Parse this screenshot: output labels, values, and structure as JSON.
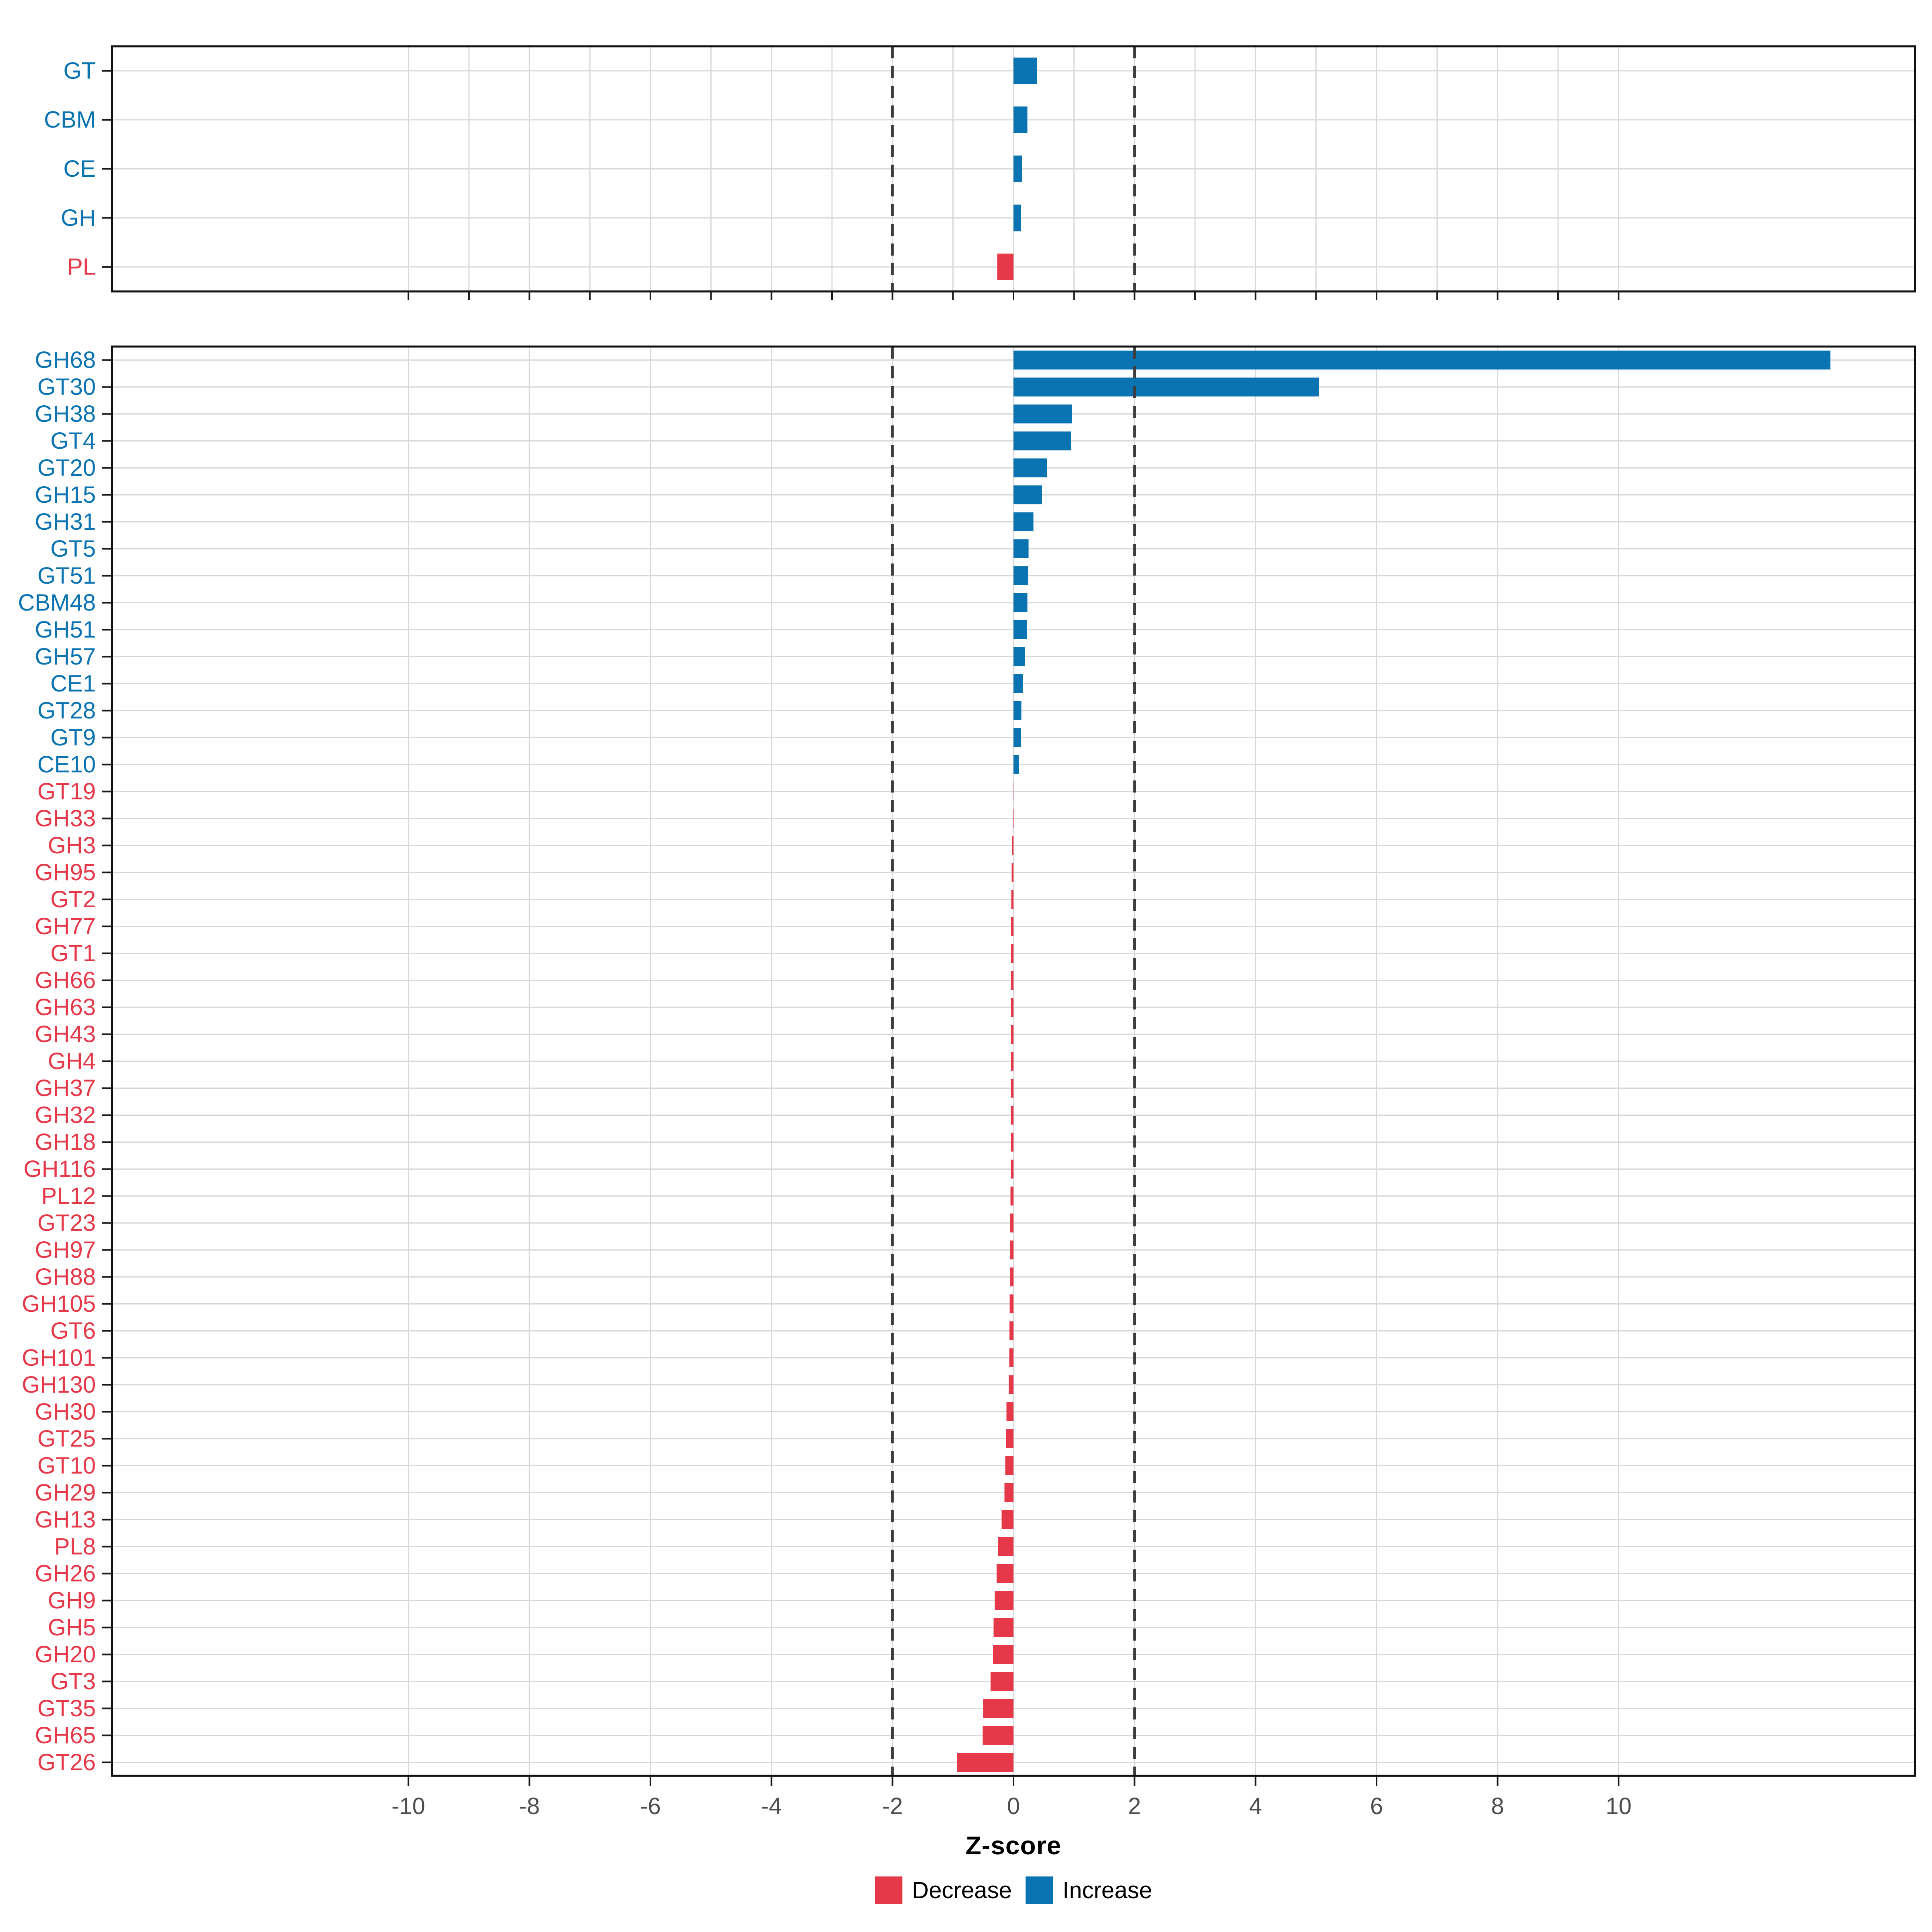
{
  "axis": {
    "label": "Z-score",
    "tick_labels": [
      "-10",
      "-8",
      "-6",
      "-4",
      "-2",
      "0",
      "2",
      "4",
      "6",
      "8",
      "10"
    ],
    "tick_values": [
      -10,
      -8,
      -6,
      -4,
      -2,
      0,
      2,
      4,
      6,
      8,
      10
    ],
    "xlim": [
      -14.9,
      14.9
    ],
    "thresholds": [
      -2,
      2
    ]
  },
  "legend": {
    "items": [
      {
        "label": "Decrease",
        "color": "#e5394a"
      },
      {
        "label": "Increase",
        "color": "#0a73b2"
      }
    ]
  },
  "colors": {
    "increase": "#0a73b2",
    "decrease": "#e5394a",
    "grid": "#d9d9d9",
    "threshold_dash": "#3d3d3d",
    "panel_border": "#111111",
    "tick": "#1a1a1a",
    "axis_text": "#4d4d4d",
    "background": "#ffffff"
  },
  "chart_data": [
    {
      "type": "bar",
      "panel": "top",
      "orientation": "horizontal",
      "title": "",
      "xlabel": "Z-score",
      "ylabel": "",
      "xlim": [
        -14.9,
        14.9
      ],
      "grid_step": 1,
      "categories": [
        "GT",
        "CBM",
        "CE",
        "GH",
        "PL"
      ],
      "values": [
        0.39,
        0.23,
        0.14,
        0.12,
        -0.27
      ]
    },
    {
      "type": "bar",
      "panel": "bottom",
      "orientation": "horizontal",
      "title": "",
      "xlabel": "Z-score",
      "ylabel": "",
      "xlim": [
        -14.9,
        14.9
      ],
      "grid_step": 2,
      "categories": [
        "GH68",
        "GT30",
        "GH38",
        "GT4",
        "GT20",
        "GH15",
        "GH31",
        "GT5",
        "GT51",
        "CBM48",
        "GH51",
        "GH57",
        "CE1",
        "GT28",
        "GT9",
        "CE10",
        "GT19",
        "GH33",
        "GH3",
        "GH95",
        "GT2",
        "GH77",
        "GT1",
        "GH66",
        "GH63",
        "GH43",
        "GH4",
        "GH37",
        "GH32",
        "GH18",
        "GH116",
        "PL12",
        "GT23",
        "GH97",
        "GH88",
        "GH105",
        "GT6",
        "GH101",
        "GH130",
        "GH30",
        "GT25",
        "GT10",
        "GH29",
        "GH13",
        "PL8",
        "GH26",
        "GH9",
        "GH5",
        "GH20",
        "GT3",
        "GT35",
        "GH65",
        "GT26"
      ],
      "values": [
        13.5,
        5.05,
        0.97,
        0.95,
        0.56,
        0.47,
        0.33,
        0.25,
        0.24,
        0.23,
        0.22,
        0.19,
        0.16,
        0.13,
        0.12,
        0.09,
        -0.004,
        -0.013,
        -0.019,
        -0.03,
        -0.036,
        -0.042,
        -0.043,
        -0.043,
        -0.044,
        -0.044,
        -0.044,
        -0.045,
        -0.045,
        -0.046,
        -0.048,
        -0.05,
        -0.055,
        -0.058,
        -0.06,
        -0.062,
        -0.065,
        -0.07,
        -0.08,
        -0.115,
        -0.125,
        -0.135,
        -0.15,
        -0.195,
        -0.26,
        -0.28,
        -0.31,
        -0.33,
        -0.34,
        -0.38,
        -0.5,
        -0.51,
        -0.93
      ]
    }
  ]
}
